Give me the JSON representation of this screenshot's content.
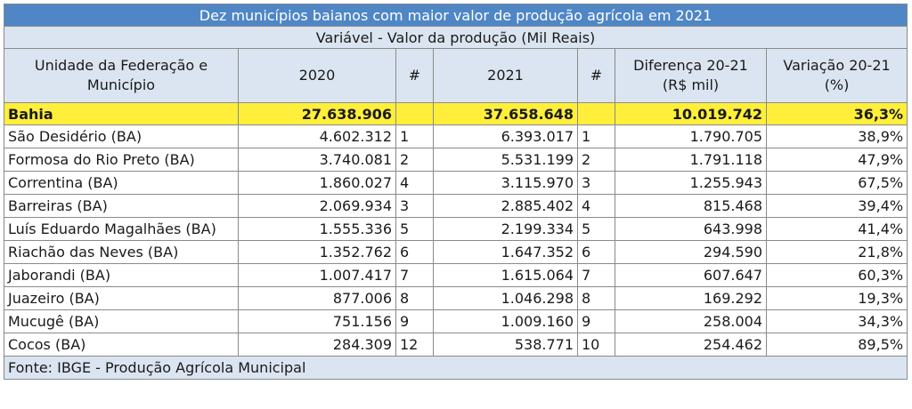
{
  "title": "Dez municípios baianos com maior valor de produção agrícola em 2021",
  "subtitle": "Variável - Valor da produção (Mil Reais)",
  "headers": {
    "unit_line1": "Unidade da Federação e",
    "unit_line2": "Município",
    "y2020": "2020",
    "rank1": "#",
    "y2021": "2021",
    "rank2": "#",
    "diff_line1": "Diferença 20-21",
    "diff_line2": "(R$ mil)",
    "var_line1": "Variação 20-21",
    "var_line2": "(%)"
  },
  "total": {
    "name": "Bahia",
    "v2020": "27.638.906",
    "r2020": "",
    "v2021": "37.658.648",
    "r2021": "",
    "diff": "10.019.742",
    "var": "36,3%"
  },
  "rows": [
    {
      "name": "São Desidério (BA)",
      "v2020": "4.602.312",
      "r2020": "1",
      "v2021": "6.393.017",
      "r2021": "1",
      "diff": "1.790.705",
      "var": "38,9%"
    },
    {
      "name": "Formosa do Rio Preto (BA)",
      "v2020": "3.740.081",
      "r2020": "2",
      "v2021": "5.531.199",
      "r2021": "2",
      "diff": "1.791.118",
      "var": "47,9%"
    },
    {
      "name": "Correntina (BA)",
      "v2020": "1.860.027",
      "r2020": "4",
      "v2021": "3.115.970",
      "r2021": "3",
      "diff": "1.255.943",
      "var": "67,5%"
    },
    {
      "name": "Barreiras (BA)",
      "v2020": "2.069.934",
      "r2020": "3",
      "v2021": "2.885.402",
      "r2021": "4",
      "diff": "815.468",
      "var": "39,4%"
    },
    {
      "name": "Luís Eduardo Magalhães (BA)",
      "v2020": "1.555.336",
      "r2020": "5",
      "v2021": "2.199.334",
      "r2021": "5",
      "diff": "643.998",
      "var": "41,4%"
    },
    {
      "name": "Riachão das Neves (BA)",
      "v2020": "1.352.762",
      "r2020": "6",
      "v2021": "1.647.352",
      "r2021": "6",
      "diff": "294.590",
      "var": "21,8%"
    },
    {
      "name": "Jaborandi (BA)",
      "v2020": "1.007.417",
      "r2020": "7",
      "v2021": "1.615.064",
      "r2021": "7",
      "diff": "607.647",
      "var": "60,3%"
    },
    {
      "name": "Juazeiro (BA)",
      "v2020": "877.006",
      "r2020": "8",
      "v2021": "1.046.298",
      "r2021": "8",
      "diff": "169.292",
      "var": "19,3%"
    },
    {
      "name": "Mucugê (BA)",
      "v2020": "751.156",
      "r2020": "9",
      "v2021": "1.009.160",
      "r2021": "9",
      "diff": "258.004",
      "var": "34,3%"
    },
    {
      "name": "Cocos (BA)",
      "v2020": "284.309",
      "r2020": "12",
      "v2021": "538.771",
      "r2021": "10",
      "diff": "254.462",
      "var": "89,5%"
    }
  ],
  "source": "Fonte: IBGE - Produção Agrícola Municipal",
  "colors": {
    "title_bg": "#4f86c6",
    "header_bg": "#dbe5f1",
    "total_bg": "#ffef3a"
  }
}
